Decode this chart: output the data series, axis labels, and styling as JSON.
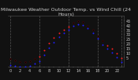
{
  "title": "Milwaukee Weather Outdoor Temp. vs Wind Chill (24 Hours)",
  "bg_color": "#111111",
  "plot_bg_color": "#111111",
  "grid_color": "#555555",
  "text_color": "#cccccc",
  "ylim": [
    -5,
    50
  ],
  "yticks": [
    5,
    10,
    15,
    20,
    25,
    30,
    35,
    40,
    45
  ],
  "hours": [
    0,
    1,
    2,
    3,
    4,
    5,
    6,
    7,
    8,
    9,
    10,
    11,
    12,
    13,
    14,
    15,
    16,
    17,
    18,
    19,
    20,
    21,
    22,
    23
  ],
  "temp": [
    3,
    2,
    0,
    0,
    1,
    3,
    6,
    13,
    20,
    26,
    31,
    35,
    38,
    42,
    44,
    43,
    39,
    35,
    28,
    23,
    18,
    14,
    9,
    4
  ],
  "wind_chill": [
    -3,
    -4,
    -5,
    -5,
    -4,
    -2,
    1,
    8,
    15,
    21,
    27,
    31,
    35,
    39,
    41,
    40,
    36,
    31,
    25,
    19,
    14,
    10,
    5,
    0
  ],
  "temp_color": "#ff2020",
  "wind_chill_color": "#2020ff",
  "marker_color": "#000000",
  "vgrid_positions": [
    0,
    6,
    12,
    18,
    23
  ],
  "title_fontsize": 4.5,
  "tick_fontsize": 3.5,
  "dot_size": 2.0
}
